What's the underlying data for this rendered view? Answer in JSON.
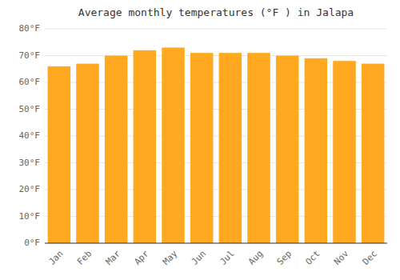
{
  "chart_data": {
    "type": "bar",
    "title": "Average monthly temperatures (°F ) in Jalapa",
    "categories": [
      "Jan",
      "Feb",
      "Mar",
      "Apr",
      "May",
      "Jun",
      "Jul",
      "Aug",
      "Sep",
      "Oct",
      "Nov",
      "Dec"
    ],
    "values": [
      66,
      67,
      70,
      72,
      73,
      71,
      71,
      71,
      70,
      69,
      68,
      67
    ],
    "color": "#FFA820",
    "ylim": [
      0,
      80
    ],
    "yticks": [
      {
        "value": 0,
        "label": "0°F"
      },
      {
        "value": 10,
        "label": "10°F"
      },
      {
        "value": 20,
        "label": "20°F"
      },
      {
        "value": 30,
        "label": "30°F"
      },
      {
        "value": 40,
        "label": "40°F"
      },
      {
        "value": 50,
        "label": "50°F"
      },
      {
        "value": 60,
        "label": "60°F"
      },
      {
        "value": 70,
        "label": "70°F"
      },
      {
        "value": 80,
        "label": "80°F"
      }
    ],
    "grid": true
  }
}
